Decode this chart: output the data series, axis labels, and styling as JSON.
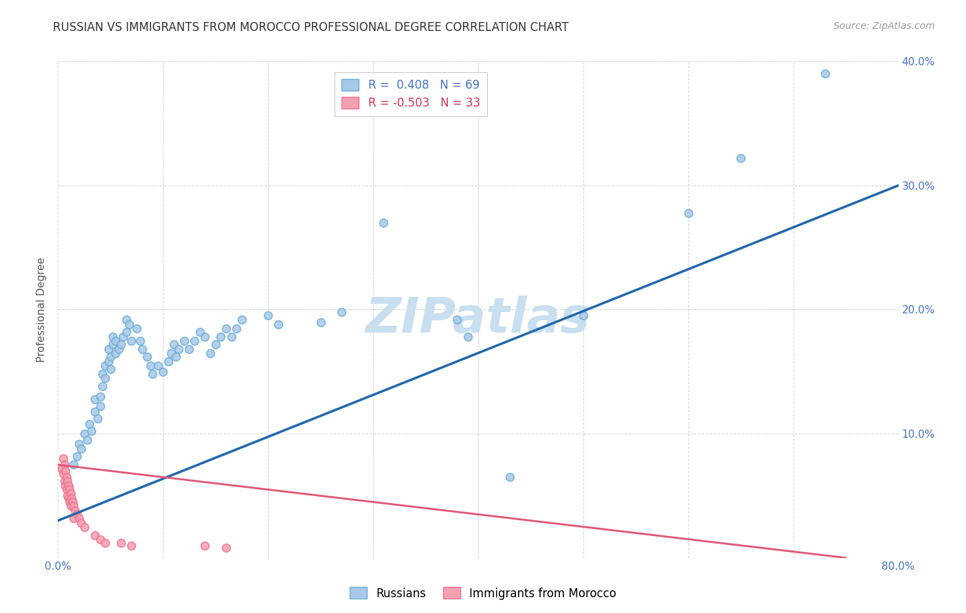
{
  "title": "RUSSIAN VS IMMIGRANTS FROM MOROCCO PROFESSIONAL DEGREE CORRELATION CHART",
  "source": "Source: ZipAtlas.com",
  "ylabel": "Professional Degree",
  "watermark": "ZIPatlas",
  "xlim": [
    0,
    0.8
  ],
  "ylim": [
    0,
    0.4
  ],
  "xticks": [
    0.0,
    0.1,
    0.2,
    0.3,
    0.4,
    0.5,
    0.6,
    0.7,
    0.8
  ],
  "yticks": [
    0.0,
    0.1,
    0.2,
    0.3,
    0.4
  ],
  "blue_R": 0.408,
  "blue_N": 69,
  "pink_R": -0.503,
  "pink_N": 33,
  "legend_label_blue": "Russians",
  "legend_label_pink": "Immigrants from Morocco",
  "blue_color": "#a8c8e8",
  "pink_color": "#f4a0b0",
  "blue_edge_color": "#6baed6",
  "pink_edge_color": "#f07090",
  "blue_line_color": "#2166ac",
  "pink_line_color": "#e05575",
  "blue_scatter": [
    [
      0.015,
      0.075
    ],
    [
      0.018,
      0.082
    ],
    [
      0.02,
      0.092
    ],
    [
      0.022,
      0.088
    ],
    [
      0.025,
      0.1
    ],
    [
      0.028,
      0.095
    ],
    [
      0.03,
      0.108
    ],
    [
      0.032,
      0.102
    ],
    [
      0.035,
      0.118
    ],
    [
      0.035,
      0.128
    ],
    [
      0.038,
      0.112
    ],
    [
      0.04,
      0.122
    ],
    [
      0.04,
      0.13
    ],
    [
      0.042,
      0.138
    ],
    [
      0.042,
      0.148
    ],
    [
      0.045,
      0.145
    ],
    [
      0.045,
      0.155
    ],
    [
      0.048,
      0.158
    ],
    [
      0.048,
      0.168
    ],
    [
      0.05,
      0.152
    ],
    [
      0.05,
      0.162
    ],
    [
      0.052,
      0.172
    ],
    [
      0.052,
      0.178
    ],
    [
      0.055,
      0.165
    ],
    [
      0.055,
      0.175
    ],
    [
      0.058,
      0.168
    ],
    [
      0.06,
      0.172
    ],
    [
      0.062,
      0.178
    ],
    [
      0.065,
      0.182
    ],
    [
      0.065,
      0.192
    ],
    [
      0.068,
      0.188
    ],
    [
      0.07,
      0.175
    ],
    [
      0.075,
      0.185
    ],
    [
      0.078,
      0.175
    ],
    [
      0.08,
      0.168
    ],
    [
      0.085,
      0.162
    ],
    [
      0.088,
      0.155
    ],
    [
      0.09,
      0.148
    ],
    [
      0.095,
      0.155
    ],
    [
      0.1,
      0.15
    ],
    [
      0.105,
      0.158
    ],
    [
      0.108,
      0.165
    ],
    [
      0.11,
      0.172
    ],
    [
      0.112,
      0.162
    ],
    [
      0.115,
      0.168
    ],
    [
      0.12,
      0.175
    ],
    [
      0.125,
      0.168
    ],
    [
      0.13,
      0.175
    ],
    [
      0.135,
      0.182
    ],
    [
      0.14,
      0.178
    ],
    [
      0.145,
      0.165
    ],
    [
      0.15,
      0.172
    ],
    [
      0.155,
      0.178
    ],
    [
      0.16,
      0.185
    ],
    [
      0.165,
      0.178
    ],
    [
      0.17,
      0.185
    ],
    [
      0.175,
      0.192
    ],
    [
      0.2,
      0.195
    ],
    [
      0.21,
      0.188
    ],
    [
      0.25,
      0.19
    ],
    [
      0.27,
      0.198
    ],
    [
      0.31,
      0.27
    ],
    [
      0.38,
      0.192
    ],
    [
      0.39,
      0.178
    ],
    [
      0.43,
      0.065
    ],
    [
      0.5,
      0.195
    ],
    [
      0.6,
      0.278
    ],
    [
      0.65,
      0.322
    ],
    [
      0.73,
      0.39
    ]
  ],
  "pink_scatter": [
    [
      0.004,
      0.072
    ],
    [
      0.005,
      0.08
    ],
    [
      0.005,
      0.068
    ],
    [
      0.006,
      0.075
    ],
    [
      0.006,
      0.062
    ],
    [
      0.007,
      0.07
    ],
    [
      0.007,
      0.058
    ],
    [
      0.008,
      0.065
    ],
    [
      0.008,
      0.055
    ],
    [
      0.009,
      0.062
    ],
    [
      0.009,
      0.05
    ],
    [
      0.01,
      0.058
    ],
    [
      0.01,
      0.048
    ],
    [
      0.011,
      0.055
    ],
    [
      0.011,
      0.045
    ],
    [
      0.012,
      0.052
    ],
    [
      0.012,
      0.042
    ],
    [
      0.013,
      0.048
    ],
    [
      0.014,
      0.045
    ],
    [
      0.015,
      0.042
    ],
    [
      0.015,
      0.032
    ],
    [
      0.016,
      0.038
    ],
    [
      0.018,
      0.035
    ],
    [
      0.02,
      0.032
    ],
    [
      0.022,
      0.028
    ],
    [
      0.025,
      0.025
    ],
    [
      0.035,
      0.018
    ],
    [
      0.04,
      0.015
    ],
    [
      0.045,
      0.012
    ],
    [
      0.06,
      0.012
    ],
    [
      0.07,
      0.01
    ],
    [
      0.14,
      0.01
    ],
    [
      0.16,
      0.008
    ]
  ],
  "blue_line_x": [
    0.0,
    0.8
  ],
  "blue_line_y": [
    0.03,
    0.3
  ],
  "pink_line_x": [
    0.0,
    0.75
  ],
  "pink_line_y": [
    0.075,
    0.0
  ],
  "background_color": "#ffffff",
  "grid_color": "#cccccc",
  "title_fontsize": 12,
  "axis_label_fontsize": 11,
  "tick_fontsize": 11,
  "legend_fontsize": 12,
  "watermark_fontsize": 52,
  "watermark_color": "#c8dff0",
  "source_fontsize": 10,
  "source_color": "#999999",
  "dot_size": 70,
  "dot_linewidth": 1.2
}
